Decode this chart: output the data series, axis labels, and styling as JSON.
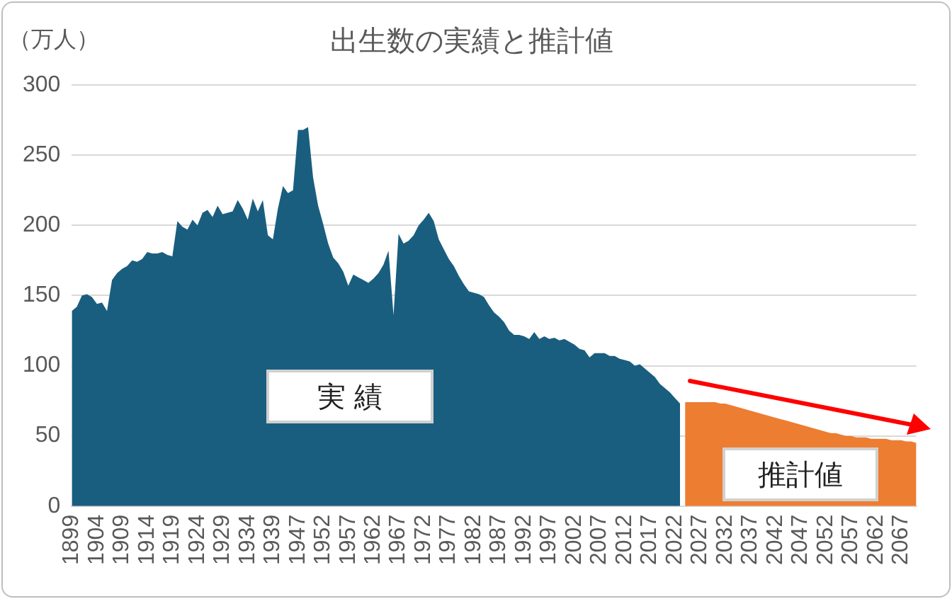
{
  "chart_data": {
    "type": "area",
    "title": "出生数の実績と推計値",
    "ylabel": "（万人）",
    "categories": [
      "1899",
      null,
      null,
      null,
      null,
      "1904",
      null,
      null,
      null,
      null,
      "1909",
      null,
      null,
      null,
      null,
      "1914",
      null,
      null,
      null,
      null,
      "1919",
      null,
      null,
      null,
      null,
      "1924",
      null,
      null,
      null,
      null,
      "1929",
      null,
      null,
      null,
      null,
      "1934",
      null,
      null,
      null,
      null,
      "1939",
      null,
      null,
      null,
      null,
      "1947",
      null,
      null,
      null,
      null,
      "1952",
      null,
      null,
      null,
      null,
      "1957",
      null,
      null,
      null,
      null,
      "1962",
      null,
      null,
      null,
      null,
      "1967",
      null,
      null,
      null,
      null,
      "1972",
      null,
      null,
      null,
      null,
      "1977",
      null,
      null,
      null,
      null,
      "1982",
      null,
      null,
      null,
      null,
      "1987",
      null,
      null,
      null,
      null,
      "1992",
      null,
      null,
      null,
      null,
      "1997",
      null,
      null,
      null,
      null,
      "2002",
      null,
      null,
      null,
      null,
      "2007",
      null,
      null,
      null,
      null,
      "2012",
      null,
      null,
      null,
      null,
      "2017",
      null,
      null,
      null,
      null,
      "2022",
      null,
      null,
      null,
      null,
      "2027",
      null,
      null,
      null,
      null,
      "2032",
      null,
      null,
      null,
      null,
      "2037",
      null,
      null,
      null,
      null,
      "2042",
      null,
      null,
      null,
      null,
      "2047",
      null,
      null,
      null,
      null,
      "2052",
      null,
      null,
      null,
      null,
      "2057",
      null,
      null,
      null,
      null,
      "2062",
      null,
      null,
      null,
      null,
      "2067",
      null,
      null,
      null
    ],
    "series": [
      {
        "color": "#1a5e7f",
        "values": [
          139,
          142,
          150,
          151,
          149,
          144,
          145,
          139,
          161,
          166,
          169,
          171,
          175,
          174,
          176,
          181,
          180,
          180,
          181,
          179,
          178,
          203,
          199,
          197,
          204,
          200,
          209,
          211,
          206,
          214,
          208,
          209,
          210,
          218,
          212,
          204,
          219,
          210,
          218,
          193,
          190,
          212,
          228,
          223,
          225,
          268,
          268,
          270,
          234,
          214,
          201,
          187,
          177,
          173,
          167,
          157,
          165,
          163,
          161,
          159,
          162,
          166,
          172,
          182,
          136,
          194,
          187,
          189,
          193,
          200,
          204,
          209,
          203,
          190,
          183,
          176,
          171,
          164,
          158,
          153,
          152,
          151,
          149,
          143,
          138,
          135,
          131,
          125,
          122,
          122,
          121,
          119,
          124,
          119,
          121,
          119,
          120,
          118,
          119,
          117,
          115,
          112,
          111,
          106,
          109,
          109,
          109,
          107,
          107,
          105,
          104,
          103,
          100,
          101,
          98,
          95,
          92,
          87,
          84,
          81,
          77,
          73,
          null,
          null,
          null,
          null,
          null,
          null,
          null,
          null,
          null,
          null,
          null,
          null,
          null,
          null,
          null,
          null,
          null,
          null,
          null,
          null,
          null,
          null,
          null,
          null,
          null,
          null,
          null,
          null,
          null,
          null,
          null,
          null,
          null,
          null,
          null,
          null,
          null,
          null,
          null,
          null,
          null,
          null,
          null,
          null,
          null,
          null,
          null
        ]
      },
      {
        "color": "#ed7d31",
        "values": [
          null,
          null,
          null,
          null,
          null,
          null,
          null,
          null,
          null,
          null,
          null,
          null,
          null,
          null,
          null,
          null,
          null,
          null,
          null,
          null,
          null,
          null,
          null,
          null,
          null,
          null,
          null,
          null,
          null,
          null,
          null,
          null,
          null,
          null,
          null,
          null,
          null,
          null,
          null,
          null,
          null,
          null,
          null,
          null,
          null,
          null,
          null,
          null,
          null,
          null,
          null,
          null,
          null,
          null,
          null,
          null,
          null,
          null,
          null,
          null,
          null,
          null,
          null,
          null,
          null,
          null,
          null,
          null,
          null,
          null,
          null,
          null,
          null,
          null,
          null,
          null,
          null,
          null,
          null,
          null,
          null,
          null,
          null,
          null,
          null,
          null,
          null,
          null,
          null,
          null,
          null,
          null,
          null,
          null,
          null,
          null,
          null,
          null,
          null,
          null,
          null,
          null,
          null,
          null,
          null,
          null,
          null,
          null,
          null,
          null,
          null,
          null,
          null,
          null,
          null,
          null,
          null,
          null,
          null,
          null,
          null,
          null,
          74,
          74,
          74,
          74,
          74,
          74,
          74,
          73,
          73,
          72,
          71,
          70,
          69,
          68,
          67,
          66,
          65,
          64,
          63,
          62,
          61,
          60,
          59,
          58,
          57,
          56,
          55,
          54,
          53,
          52,
          52,
          51,
          50,
          50,
          49,
          49,
          49,
          48,
          48,
          48,
          48,
          47,
          47,
          47,
          46,
          46,
          45
        ]
      }
    ],
    "ylim": [
      0,
      300
    ],
    "yticks": [
      0,
      50,
      100,
      150,
      200,
      250,
      300
    ],
    "grid": "y",
    "legend": false,
    "annotations": [
      "実 績",
      "推計値"
    ]
  }
}
